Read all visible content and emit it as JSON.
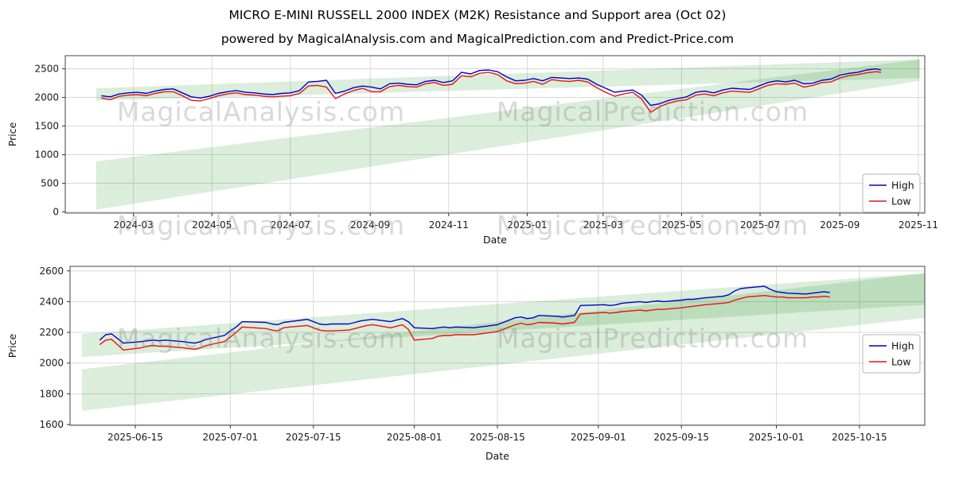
{
  "header": {
    "title": "MICRO E-MINI RUSSELL 2000 INDEX (M2K) Resistance and Support area (Oct 02)",
    "subtitle": "powered by MagicalAnalysis.com and MagicalPrediction.com and Predict-Price.com"
  },
  "watermarks": {
    "left": "MagicalAnalysis.com",
    "right": "MagicalPrediction.com"
  },
  "legend": {
    "high": "High",
    "low": "Low"
  },
  "colors": {
    "high": "#0000cc",
    "low": "#ee1111",
    "band": "#008000",
    "grid": "#d9d9d9",
    "spine": "#444444",
    "tick_text": "#1a1a1a",
    "watermark": "rgba(128,128,128,0.30)"
  },
  "chart_data": [
    {
      "type": "line",
      "xlabel": "Date",
      "ylabel": "Price",
      "grid": true,
      "legend_position": "lower-right",
      "ylim": [
        -20,
        2730
      ],
      "yticks": [
        0,
        500,
        1000,
        1500,
        2000,
        2500
      ],
      "xlim": [
        "2024-01-08",
        "2025-11-06"
      ],
      "xticks": [
        {
          "date": "2024-03-01",
          "label": "2024-03"
        },
        {
          "date": "2024-05-01",
          "label": "2024-05"
        },
        {
          "date": "2024-07-01",
          "label": "2024-07"
        },
        {
          "date": "2024-09-01",
          "label": "2024-09"
        },
        {
          "date": "2024-11-01",
          "label": "2024-11"
        },
        {
          "date": "2025-01-01",
          "label": "2025-01"
        },
        {
          "date": "2025-03-01",
          "label": "2025-03"
        },
        {
          "date": "2025-05-01",
          "label": "2025-05"
        },
        {
          "date": "2025-07-01",
          "label": "2025-07"
        },
        {
          "date": "2025-09-01",
          "label": "2025-09"
        },
        {
          "date": "2025-11-01",
          "label": "2025-11"
        }
      ],
      "series": [
        {
          "name": "High",
          "color_key": "high"
        },
        {
          "name": "Low",
          "color_key": "low"
        }
      ],
      "bands": [
        {
          "x": [
            "2024-02-01",
            "2025-11-02"
          ],
          "bottom": [
            40,
            2290
          ],
          "top": [
            880,
            2665
          ]
        },
        {
          "x": [
            "2024-02-01",
            "2025-11-02"
          ],
          "bottom": [
            1945,
            2340
          ],
          "top": [
            2160,
            2665
          ]
        }
      ],
      "points": [
        [
          "2024-02-05",
          2030,
          1990
        ],
        [
          "2024-02-12",
          2010,
          1960
        ],
        [
          "2024-02-19",
          2060,
          2020
        ],
        [
          "2024-02-26",
          2080,
          2040
        ],
        [
          "2024-03-04",
          2090,
          2050
        ],
        [
          "2024-03-11",
          2070,
          2030
        ],
        [
          "2024-03-18",
          2110,
          2070
        ],
        [
          "2024-03-25",
          2140,
          2100
        ],
        [
          "2024-04-01",
          2150,
          2100
        ],
        [
          "2024-04-08",
          2080,
          2030
        ],
        [
          "2024-04-15",
          2010,
          1950
        ],
        [
          "2024-04-22",
          1990,
          1940
        ],
        [
          "2024-04-29",
          2020,
          1980
        ],
        [
          "2024-05-06",
          2070,
          2030
        ],
        [
          "2024-05-13",
          2100,
          2060
        ],
        [
          "2024-05-20",
          2120,
          2080
        ],
        [
          "2024-05-27",
          2090,
          2050
        ],
        [
          "2024-06-03",
          2080,
          2040
        ],
        [
          "2024-06-10",
          2060,
          2020
        ],
        [
          "2024-06-17",
          2050,
          2010
        ],
        [
          "2024-06-24",
          2070,
          2020
        ],
        [
          "2024-07-01",
          2080,
          2030
        ],
        [
          "2024-07-08",
          2120,
          2070
        ],
        [
          "2024-07-15",
          2270,
          2200
        ],
        [
          "2024-07-22",
          2280,
          2210
        ],
        [
          "2024-07-29",
          2300,
          2180
        ],
        [
          "2024-08-05",
          2070,
          1980
        ],
        [
          "2024-08-12",
          2110,
          2060
        ],
        [
          "2024-08-19",
          2170,
          2120
        ],
        [
          "2024-08-26",
          2200,
          2160
        ],
        [
          "2024-09-02",
          2180,
          2100
        ],
        [
          "2024-09-09",
          2150,
          2100
        ],
        [
          "2024-09-16",
          2240,
          2190
        ],
        [
          "2024-09-23",
          2250,
          2210
        ],
        [
          "2024-09-30",
          2230,
          2190
        ],
        [
          "2024-10-07",
          2220,
          2180
        ],
        [
          "2024-10-14",
          2280,
          2240
        ],
        [
          "2024-10-21",
          2300,
          2260
        ],
        [
          "2024-10-28",
          2260,
          2210
        ],
        [
          "2024-11-04",
          2290,
          2230
        ],
        [
          "2024-11-11",
          2440,
          2380
        ],
        [
          "2024-11-18",
          2410,
          2360
        ],
        [
          "2024-11-25",
          2470,
          2420
        ],
        [
          "2024-12-02",
          2480,
          2440
        ],
        [
          "2024-12-09",
          2450,
          2400
        ],
        [
          "2024-12-16",
          2360,
          2290
        ],
        [
          "2024-12-23",
          2290,
          2240
        ],
        [
          "2024-12-30",
          2300,
          2250
        ],
        [
          "2025-01-06",
          2330,
          2280
        ],
        [
          "2025-01-13",
          2290,
          2230
        ],
        [
          "2025-01-20",
          2350,
          2310
        ],
        [
          "2025-01-27",
          2340,
          2290
        ],
        [
          "2025-02-03",
          2330,
          2280
        ],
        [
          "2025-02-10",
          2340,
          2300
        ],
        [
          "2025-02-17",
          2320,
          2270
        ],
        [
          "2025-02-24",
          2230,
          2170
        ],
        [
          "2025-03-03",
          2160,
          2090
        ],
        [
          "2025-03-10",
          2090,
          2020
        ],
        [
          "2025-03-17",
          2110,
          2060
        ],
        [
          "2025-03-24",
          2130,
          2090
        ],
        [
          "2025-03-31",
          2040,
          1970
        ],
        [
          "2025-04-07",
          1860,
          1740
        ],
        [
          "2025-04-14",
          1890,
          1840
        ],
        [
          "2025-04-21",
          1950,
          1900
        ],
        [
          "2025-04-28",
          1980,
          1940
        ],
        [
          "2025-05-05",
          2010,
          1960
        ],
        [
          "2025-05-12",
          2090,
          2040
        ],
        [
          "2025-05-19",
          2110,
          2060
        ],
        [
          "2025-05-26",
          2080,
          2030
        ],
        [
          "2025-06-02",
          2130,
          2080
        ],
        [
          "2025-06-09",
          2160,
          2110
        ],
        [
          "2025-06-16",
          2150,
          2100
        ],
        [
          "2025-06-23",
          2140,
          2090
        ],
        [
          "2025-06-30",
          2200,
          2150
        ],
        [
          "2025-07-07",
          2260,
          2210
        ],
        [
          "2025-07-14",
          2290,
          2240
        ],
        [
          "2025-07-21",
          2270,
          2230
        ],
        [
          "2025-07-28",
          2300,
          2250
        ],
        [
          "2025-08-04",
          2240,
          2180
        ],
        [
          "2025-08-11",
          2250,
          2210
        ],
        [
          "2025-08-18",
          2300,
          2260
        ],
        [
          "2025-08-25",
          2320,
          2270
        ],
        [
          "2025-09-01",
          2390,
          2340
        ],
        [
          "2025-09-08",
          2420,
          2380
        ],
        [
          "2025-09-15",
          2440,
          2400
        ],
        [
          "2025-09-22",
          2480,
          2430
        ],
        [
          "2025-09-29",
          2500,
          2450
        ],
        [
          "2025-10-03",
          2480,
          2440
        ]
      ]
    },
    {
      "type": "line",
      "xlabel": "Date",
      "ylabel": "Price",
      "grid": true,
      "legend_position": "center-right",
      "ylim": [
        1595,
        2630
      ],
      "yticks": [
        1600,
        1800,
        2000,
        2200,
        2400,
        2600
      ],
      "xlim": [
        "2025-06-04",
        "2025-10-26"
      ],
      "xticks": [
        {
          "date": "2025-06-15",
          "label": "2025-06-15"
        },
        {
          "date": "2025-07-01",
          "label": "2025-07-01"
        },
        {
          "date": "2025-07-15",
          "label": "2025-07-15"
        },
        {
          "date": "2025-08-01",
          "label": "2025-08-01"
        },
        {
          "date": "2025-08-15",
          "label": "2025-08-15"
        },
        {
          "date": "2025-09-01",
          "label": "2025-09-01"
        },
        {
          "date": "2025-09-15",
          "label": "2025-09-15"
        },
        {
          "date": "2025-10-01",
          "label": "2025-10-01"
        },
        {
          "date": "2025-10-15",
          "label": "2025-10-15"
        }
      ],
      "series": [
        {
          "name": "High",
          "color_key": "high"
        },
        {
          "name": "Low",
          "color_key": "low"
        }
      ],
      "bands": [
        {
          "x": [
            "2025-06-06",
            "2025-10-26"
          ],
          "bottom": [
            1690,
            2295
          ],
          "top": [
            1960,
            2585
          ]
        },
        {
          "x": [
            "2025-06-06",
            "2025-10-26"
          ],
          "bottom": [
            2040,
            2380
          ],
          "top": [
            2190,
            2585
          ]
        }
      ],
      "points": [
        [
          "2025-06-09",
          2150,
          2120
        ],
        [
          "2025-06-10",
          2185,
          2150
        ],
        [
          "2025-06-11",
          2190,
          2155
        ],
        [
          "2025-06-12",
          2160,
          2120
        ],
        [
          "2025-06-13",
          2130,
          2085
        ],
        [
          "2025-06-16",
          2140,
          2100
        ],
        [
          "2025-06-17",
          2145,
          2110
        ],
        [
          "2025-06-18",
          2150,
          2115
        ],
        [
          "2025-06-19",
          2145,
          2110
        ],
        [
          "2025-06-20",
          2150,
          2110
        ],
        [
          "2025-06-23",
          2140,
          2100
        ],
        [
          "2025-06-24",
          2135,
          2095
        ],
        [
          "2025-06-25",
          2130,
          2090
        ],
        [
          "2025-06-26",
          2140,
          2100
        ],
        [
          "2025-06-27",
          2155,
          2115
        ],
        [
          "2025-06-30",
          2180,
          2140
        ],
        [
          "2025-07-01",
          2210,
          2170
        ],
        [
          "2025-07-02",
          2235,
          2200
        ],
        [
          "2025-07-03",
          2270,
          2235
        ],
        [
          "2025-07-07",
          2265,
          2225
        ],
        [
          "2025-07-08",
          2255,
          2215
        ],
        [
          "2025-07-09",
          2250,
          2210
        ],
        [
          "2025-07-10",
          2265,
          2230
        ],
        [
          "2025-07-11",
          2270,
          2235
        ],
        [
          "2025-07-14",
          2285,
          2245
        ],
        [
          "2025-07-15",
          2270,
          2230
        ],
        [
          "2025-07-16",
          2255,
          2215
        ],
        [
          "2025-07-17",
          2250,
          2210
        ],
        [
          "2025-07-18",
          2255,
          2210
        ],
        [
          "2025-07-21",
          2255,
          2215
        ],
        [
          "2025-07-22",
          2265,
          2225
        ],
        [
          "2025-07-23",
          2275,
          2235
        ],
        [
          "2025-07-24",
          2280,
          2245
        ],
        [
          "2025-07-25",
          2285,
          2250
        ],
        [
          "2025-07-28",
          2270,
          2230
        ],
        [
          "2025-07-29",
          2280,
          2240
        ],
        [
          "2025-07-30",
          2290,
          2250
        ],
        [
          "2025-07-31",
          2270,
          2220
        ],
        [
          "2025-08-01",
          2230,
          2150
        ],
        [
          "2025-08-04",
          2225,
          2160
        ],
        [
          "2025-08-05",
          2230,
          2175
        ],
        [
          "2025-08-06",
          2235,
          2180
        ],
        [
          "2025-08-07",
          2230,
          2180
        ],
        [
          "2025-08-08",
          2235,
          2185
        ],
        [
          "2025-08-11",
          2230,
          2185
        ],
        [
          "2025-08-12",
          2235,
          2190
        ],
        [
          "2025-08-13",
          2240,
          2195
        ],
        [
          "2025-08-14",
          2245,
          2200
        ],
        [
          "2025-08-15",
          2250,
          2205
        ],
        [
          "2025-08-18",
          2295,
          2250
        ],
        [
          "2025-08-19",
          2300,
          2260
        ],
        [
          "2025-08-20",
          2290,
          2250
        ],
        [
          "2025-08-21",
          2295,
          2255
        ],
        [
          "2025-08-22",
          2310,
          2265
        ],
        [
          "2025-08-25",
          2305,
          2260
        ],
        [
          "2025-08-26",
          2300,
          2255
        ],
        [
          "2025-08-27",
          2305,
          2260
        ],
        [
          "2025-08-28",
          2310,
          2265
        ],
        [
          "2025-08-29",
          2375,
          2320
        ],
        [
          "2025-09-02",
          2380,
          2330
        ],
        [
          "2025-09-03",
          2375,
          2325
        ],
        [
          "2025-09-04",
          2380,
          2330
        ],
        [
          "2025-09-05",
          2390,
          2335
        ],
        [
          "2025-09-08",
          2400,
          2345
        ],
        [
          "2025-09-09",
          2395,
          2340
        ],
        [
          "2025-09-10",
          2400,
          2345
        ],
        [
          "2025-09-11",
          2405,
          2350
        ],
        [
          "2025-09-12",
          2400,
          2350
        ],
        [
          "2025-09-15",
          2410,
          2360
        ],
        [
          "2025-09-16",
          2415,
          2365
        ],
        [
          "2025-09-17",
          2415,
          2370
        ],
        [
          "2025-09-18",
          2420,
          2375
        ],
        [
          "2025-09-19",
          2425,
          2380
        ],
        [
          "2025-09-22",
          2435,
          2390
        ],
        [
          "2025-09-23",
          2445,
          2395
        ],
        [
          "2025-09-24",
          2470,
          2410
        ],
        [
          "2025-09-25",
          2485,
          2420
        ],
        [
          "2025-09-26",
          2490,
          2430
        ],
        [
          "2025-09-29",
          2500,
          2440
        ],
        [
          "2025-09-30",
          2480,
          2435
        ],
        [
          "2025-10-01",
          2465,
          2430
        ],
        [
          "2025-10-02",
          2460,
          2430
        ],
        [
          "2025-10-03",
          2455,
          2425
        ],
        [
          "2025-10-06",
          2450,
          2425
        ],
        [
          "2025-10-07",
          2455,
          2430
        ],
        [
          "2025-10-08",
          2460,
          2430
        ],
        [
          "2025-10-09",
          2465,
          2435
        ],
        [
          "2025-10-10",
          2460,
          2430
        ]
      ]
    }
  ]
}
